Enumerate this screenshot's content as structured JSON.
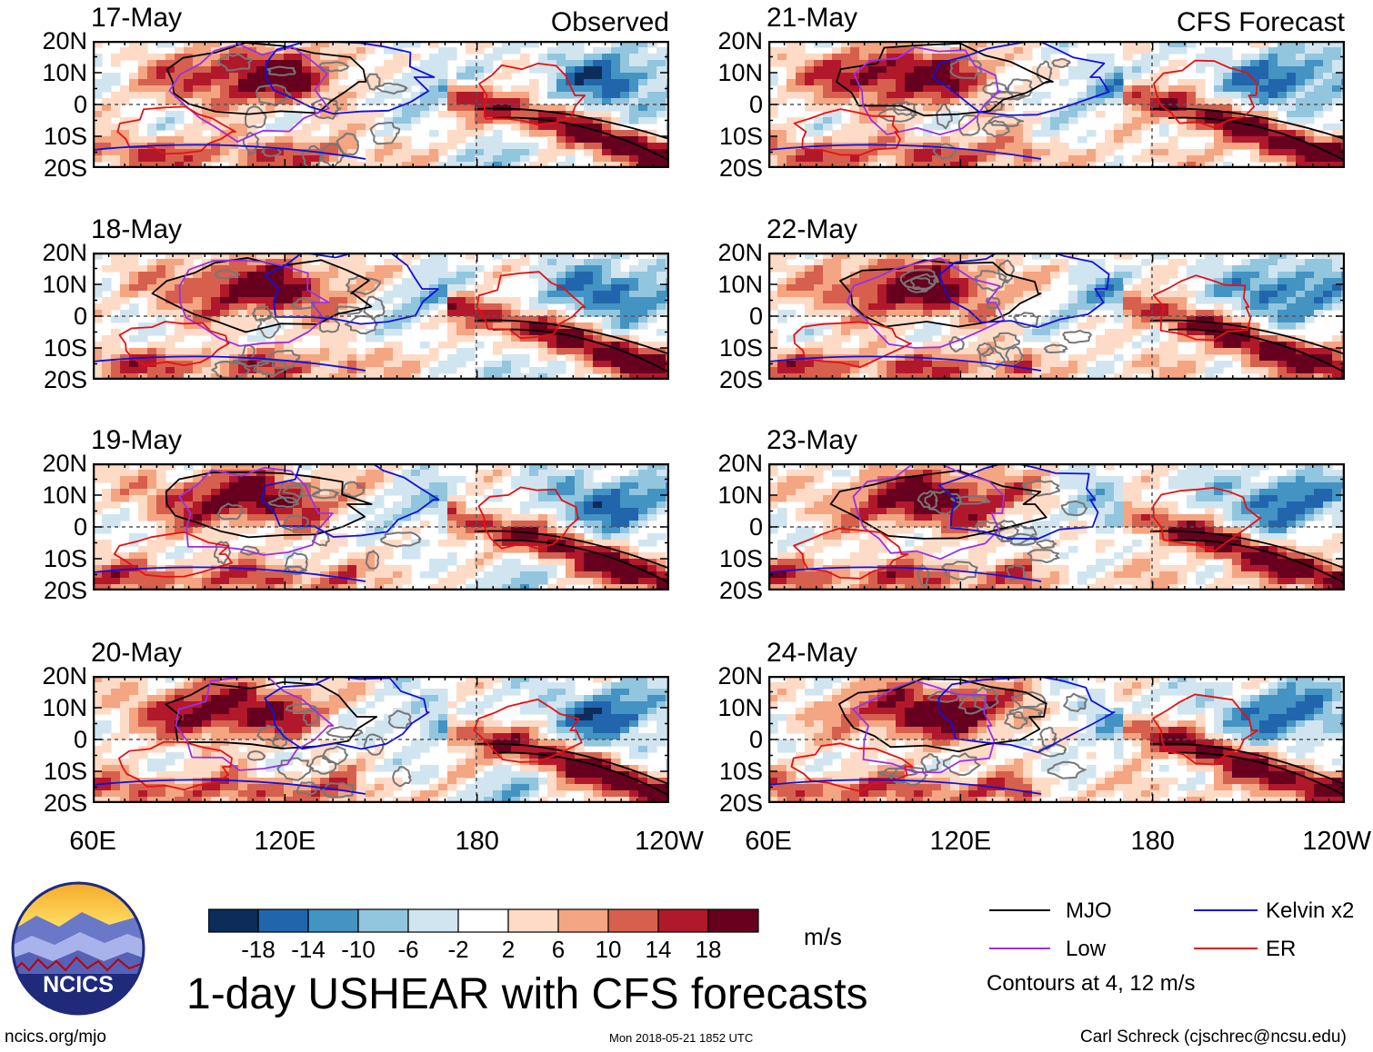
{
  "chart_data": {
    "type": "heatmap",
    "title": "1-day USHEAR with CFS forecasts",
    "variable": "USHEAR",
    "units": "m/s",
    "lat_ticks": [
      "20N",
      "10N",
      "0",
      "10S",
      "20S"
    ],
    "lat_range": [
      -20,
      20
    ],
    "lon_ticks": [
      "60E",
      "120E",
      "180",
      "120W"
    ],
    "lon_range": [
      60,
      240
    ],
    "columns": [
      {
        "tag": "Observed",
        "panels": [
          {
            "date": "17-May",
            "seed": 1
          },
          {
            "date": "18-May",
            "seed": 2
          },
          {
            "date": "19-May",
            "seed": 3
          },
          {
            "date": "20-May",
            "seed": 4
          }
        ]
      },
      {
        "tag": "CFS Forecast",
        "panels": [
          {
            "date": "21-May",
            "seed": 5
          },
          {
            "date": "22-May",
            "seed": 6
          },
          {
            "date": "23-May",
            "seed": 7
          },
          {
            "date": "24-May",
            "seed": 8
          }
        ]
      }
    ],
    "colorbar": {
      "levels": [
        "-18",
        "-14",
        "-10",
        "-6",
        "-2",
        "2",
        "6",
        "10",
        "14",
        "18"
      ],
      "colors": [
        "#0c2c5a",
        "#2166ac",
        "#4393c3",
        "#92c5de",
        "#d1e5f0",
        "#ffffff",
        "#fddbc7",
        "#f4a582",
        "#d6604d",
        "#b2182b",
        "#67001f"
      ]
    },
    "legend": {
      "items": [
        {
          "label": "MJO",
          "color": "#000000"
        },
        {
          "label": "Kelvin x2",
          "color": "#1010e0"
        },
        {
          "label": "Low",
          "color": "#9a30e8"
        },
        {
          "label": "ER",
          "color": "#e81010"
        }
      ],
      "note": "Contours at 4, 12 m/s"
    }
  },
  "logo": {
    "text": "NCICS"
  },
  "footer": {
    "url": "ncics.org/mjo",
    "timestamp": "Mon 2018-05-21 1852 UTC",
    "author": "Carl Schreck (cjschrec@ncsu.edu)"
  }
}
